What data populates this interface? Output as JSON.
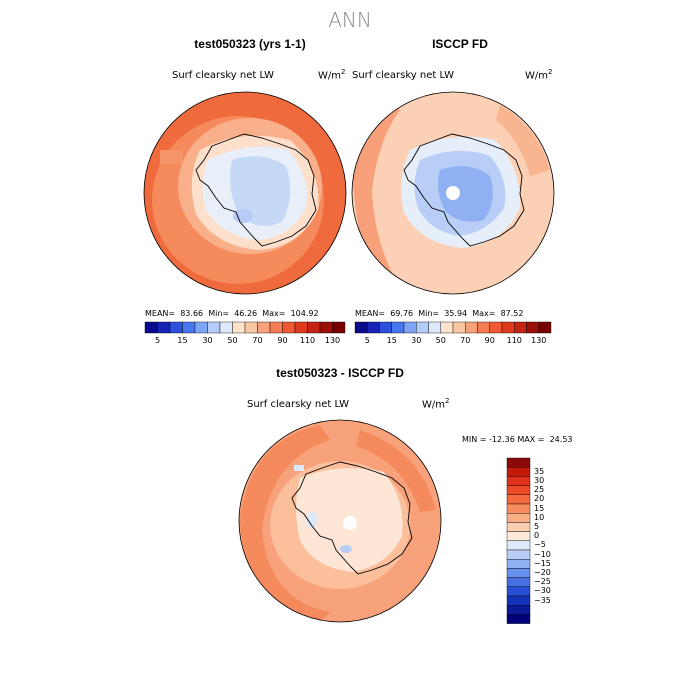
{
  "title": "ANN",
  "panels": [
    {
      "title": "test050323 (yrs 1-1)",
      "variable": "Surf clearsky net LW",
      "units_base": "W/m",
      "units_exp": "2",
      "mean_label": "MEAN=",
      "mean": "83.66",
      "min_label": "Min=",
      "min": "46.26",
      "max_label": "Max=",
      "max": "104.92"
    },
    {
      "title": "ISCCP FD",
      "variable": "Surf clearsky net LW",
      "units_base": "W/m",
      "units_exp": "2",
      "mean_label": "MEAN=",
      "mean": "69.76",
      "min_label": "Min=",
      "min": "35.94",
      "max_label": "Max=",
      "max": "87.52"
    }
  ],
  "top_colorbar": {
    "labels": [
      "5",
      "15",
      "30",
      "50",
      "70",
      "90",
      "110",
      "130"
    ],
    "colors": [
      "#0a0a8c",
      "#1524b4",
      "#2d4fdc",
      "#4a78f0",
      "#7ea4f5",
      "#b4ccf7",
      "#dde8f8",
      "#fde3cc",
      "#fbc6a4",
      "#f8a27c",
      "#f57d56",
      "#ef5a35",
      "#e03a1e",
      "#c42412",
      "#9c1007",
      "#780000"
    ]
  },
  "diff": {
    "title": "test050323 - ISCCP FD",
    "variable": "Surf clearsky net LW",
    "units_base": "W/m",
    "units_exp": "2",
    "min_label": "MIN =",
    "min": "-12.36",
    "max_label": "MAX =",
    "max": "24.53"
  },
  "diff_colorbar": {
    "labels": [
      "35",
      "30",
      "25",
      "20",
      "15",
      "10",
      "5",
      "0",
      "−5",
      "−10",
      "−15",
      "−20",
      "−25",
      "−30",
      "−35"
    ],
    "colors": [
      "#8c0a0a",
      "#c41a0c",
      "#e0321a",
      "#ee4a28",
      "#f56a3e",
      "#f88c5e",
      "#faae86",
      "#fccfb0",
      "#fdeadb",
      "#dde8f8",
      "#b8cdf6",
      "#8fb0f2",
      "#6890ee",
      "#4470e4",
      "#2850d4",
      "#1433b8",
      "#0a1a98",
      "#00007a"
    ]
  }
}
